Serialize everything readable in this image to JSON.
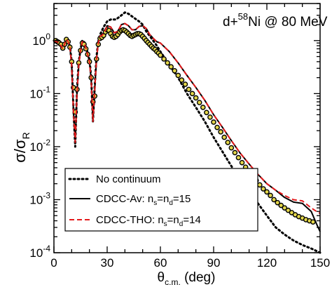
{
  "chart_data": {
    "type": "line",
    "annotation": {
      "main": "d+",
      "mass": "58",
      "rest": "Ni @ 80 MeV"
    },
    "xlabel": {
      "main": "θ",
      "sub": "c.m.",
      "rest": " (deg)"
    },
    "ylabel": {
      "s1": "σ/σ",
      "sub": "R"
    },
    "xlim": [
      0,
      150
    ],
    "ylim": [
      0.0001,
      5
    ],
    "yscale": "log",
    "x_ticks": [
      0,
      30,
      60,
      90,
      120,
      150
    ],
    "y_ticks": [
      {
        "value": 1,
        "base": "10",
        "exp": "0"
      },
      {
        "value": 0.1,
        "base": "10",
        "exp": "-1"
      },
      {
        "value": 0.01,
        "base": "10",
        "exp": "-2"
      },
      {
        "value": 0.001,
        "base": "10",
        "exp": "-3"
      },
      {
        "value": 0.0001,
        "base": "10",
        "exp": "-4"
      }
    ],
    "legend_position": "bottom-left",
    "series": [
      {
        "key": "nocont",
        "name": "No continuum",
        "style": "dotted",
        "color": "#000000",
        "x": [
          0,
          3,
          5,
          7,
          8,
          9,
          10,
          11,
          12,
          13,
          14,
          15,
          16,
          17,
          18,
          19,
          20,
          21,
          22,
          23,
          24,
          25,
          26,
          28,
          30,
          32,
          35,
          38,
          40,
          42,
          45,
          48,
          50,
          52,
          55,
          58,
          60,
          65,
          70,
          75,
          80,
          85,
          90,
          95,
          100,
          105,
          110,
          115,
          120,
          125,
          130,
          135,
          140,
          145,
          150
        ],
        "y": [
          1.0,
          0.9,
          0.72,
          1.08,
          1.0,
          0.8,
          0.4,
          0.05,
          0.01,
          0.12,
          0.4,
          0.7,
          1.0,
          0.95,
          0.75,
          0.6,
          0.45,
          0.2,
          0.03,
          0.14,
          0.5,
          0.95,
          1.3,
          1.8,
          2.3,
          2.5,
          2.5,
          3.0,
          3.4,
          3.2,
          2.7,
          2.3,
          2.0,
          1.5,
          1.1,
          0.8,
          0.62,
          0.35,
          0.2,
          0.1,
          0.055,
          0.03,
          0.015,
          0.008,
          0.0043,
          0.0024,
          0.0014,
          0.00085,
          0.0005,
          0.0003,
          0.00022,
          0.00017,
          0.00014,
          0.00012,
          0.0001
        ]
      },
      {
        "key": "av",
        "name": "CDCC-Av: n",
        "sub1": "s",
        "mid": "=n",
        "sub2": "d",
        "tail": "=15",
        "style": "solid",
        "color": "#000000",
        "x": [
          0,
          3,
          5,
          7,
          8,
          9,
          10,
          11,
          12,
          13,
          14,
          15,
          16,
          17,
          18,
          19,
          20,
          21,
          22,
          23,
          24,
          25,
          26,
          27,
          28,
          29,
          30,
          32,
          34,
          36,
          38,
          40,
          42,
          44,
          46,
          48,
          50,
          52,
          54,
          56,
          58,
          60,
          65,
          70,
          75,
          80,
          85,
          90,
          95,
          100,
          105,
          110,
          115,
          120,
          125,
          130,
          135,
          140,
          145,
          148,
          150
        ],
        "y": [
          1.0,
          0.9,
          0.7,
          1.05,
          0.95,
          0.75,
          0.35,
          0.045,
          0.012,
          0.1,
          0.35,
          0.65,
          0.95,
          0.9,
          0.72,
          0.55,
          0.4,
          0.18,
          0.03,
          0.12,
          0.45,
          0.9,
          1.2,
          1.25,
          1.35,
          1.6,
          1.9,
          1.8,
          1.4,
          1.5,
          2.0,
          2.1,
          1.9,
          1.6,
          1.6,
          1.85,
          1.9,
          1.7,
          1.3,
          1.1,
          0.95,
          0.9,
          0.62,
          0.38,
          0.22,
          0.13,
          0.075,
          0.04,
          0.023,
          0.013,
          0.0075,
          0.0047,
          0.003,
          0.002,
          0.0015,
          0.0011,
          0.0009,
          0.00085,
          0.0006,
          0.00035,
          0.00025
        ]
      },
      {
        "key": "tho",
        "name": "CDCC-THO: n",
        "sub1": "s",
        "mid": "=n",
        "sub2": "d",
        "tail": "=14",
        "style": "dashed",
        "color": "#e41a1c",
        "x": [
          0,
          3,
          5,
          7,
          8,
          9,
          10,
          11,
          12,
          13,
          14,
          15,
          16,
          17,
          18,
          19,
          20,
          21,
          22,
          23,
          24,
          25,
          26,
          27,
          28,
          29,
          30,
          32,
          34,
          36,
          38,
          40,
          42,
          44,
          46,
          48,
          50,
          52,
          54,
          56,
          58,
          60,
          65,
          70,
          75,
          80,
          85,
          90,
          95,
          100,
          105,
          110,
          115,
          120,
          125,
          130,
          135,
          140,
          145,
          148,
          150
        ],
        "y": [
          1.0,
          0.9,
          0.7,
          1.05,
          0.95,
          0.75,
          0.35,
          0.045,
          0.012,
          0.1,
          0.35,
          0.65,
          0.95,
          0.9,
          0.72,
          0.55,
          0.4,
          0.18,
          0.03,
          0.12,
          0.45,
          0.9,
          1.2,
          1.25,
          1.35,
          1.6,
          1.9,
          1.8,
          1.4,
          1.5,
          2.0,
          2.1,
          1.9,
          1.6,
          1.6,
          1.85,
          1.9,
          1.7,
          1.3,
          1.1,
          0.95,
          0.9,
          0.62,
          0.38,
          0.22,
          0.13,
          0.075,
          0.04,
          0.023,
          0.013,
          0.0075,
          0.0047,
          0.003,
          0.002,
          0.0015,
          0.0012,
          0.001,
          0.00095,
          0.0007,
          0.0006,
          0.00055
        ]
      },
      {
        "key": "exp",
        "name": "data",
        "style": "markers",
        "color": "#e3d64a",
        "x": [
          1,
          2,
          3,
          4,
          5,
          6,
          7,
          8,
          9,
          10,
          11,
          12,
          13,
          14,
          15,
          16,
          17,
          18,
          19,
          20,
          21,
          22,
          23,
          24,
          25,
          26,
          27,
          28,
          29,
          30,
          31,
          32,
          33,
          34,
          35,
          36,
          37,
          38,
          39,
          40,
          41,
          42,
          43,
          44,
          45,
          46,
          47,
          48,
          49,
          50,
          51,
          52,
          53,
          54,
          55,
          56,
          57,
          58,
          59,
          60,
          62,
          64,
          66,
          68,
          70,
          72,
          74,
          76,
          78,
          80,
          82,
          84,
          86,
          88,
          90,
          92,
          94,
          96,
          98,
          100,
          102,
          104,
          106,
          108,
          110,
          112,
          114,
          116,
          118,
          120,
          122,
          124,
          126,
          128,
          130,
          132,
          134,
          136,
          138,
          140,
          142,
          144,
          146
        ],
        "y": [
          1.0,
          0.95,
          0.9,
          0.85,
          0.72,
          0.85,
          1.05,
          0.95,
          0.75,
          0.4,
          0.13,
          0.045,
          0.12,
          0.38,
          0.65,
          0.9,
          0.85,
          0.7,
          0.55,
          0.4,
          0.2,
          0.07,
          0.09,
          0.45,
          0.85,
          1.1,
          1.15,
          1.25,
          1.45,
          1.6,
          1.55,
          1.35,
          1.2,
          1.15,
          1.2,
          1.3,
          1.45,
          1.55,
          1.6,
          1.55,
          1.45,
          1.35,
          1.25,
          1.2,
          1.25,
          1.3,
          1.35,
          1.35,
          1.3,
          1.2,
          1.1,
          1.0,
          0.92,
          0.85,
          0.78,
          0.72,
          0.68,
          0.62,
          0.58,
          0.53,
          0.45,
          0.38,
          0.32,
          0.27,
          0.22,
          0.18,
          0.15,
          0.12,
          0.1,
          0.083,
          0.068,
          0.055,
          0.044,
          0.036,
          0.029,
          0.023,
          0.019,
          0.015,
          0.012,
          0.0095,
          0.0077,
          0.0062,
          0.005,
          0.0041,
          0.0034,
          0.0028,
          0.0023,
          0.0019,
          0.0016,
          0.0014,
          0.0012,
          0.001,
          0.00088,
          0.00078,
          0.0007,
          0.00063,
          0.00057,
          0.00052,
          0.00048,
          0.00045,
          0.00042,
          0.0004,
          0.00038
        ]
      }
    ]
  }
}
